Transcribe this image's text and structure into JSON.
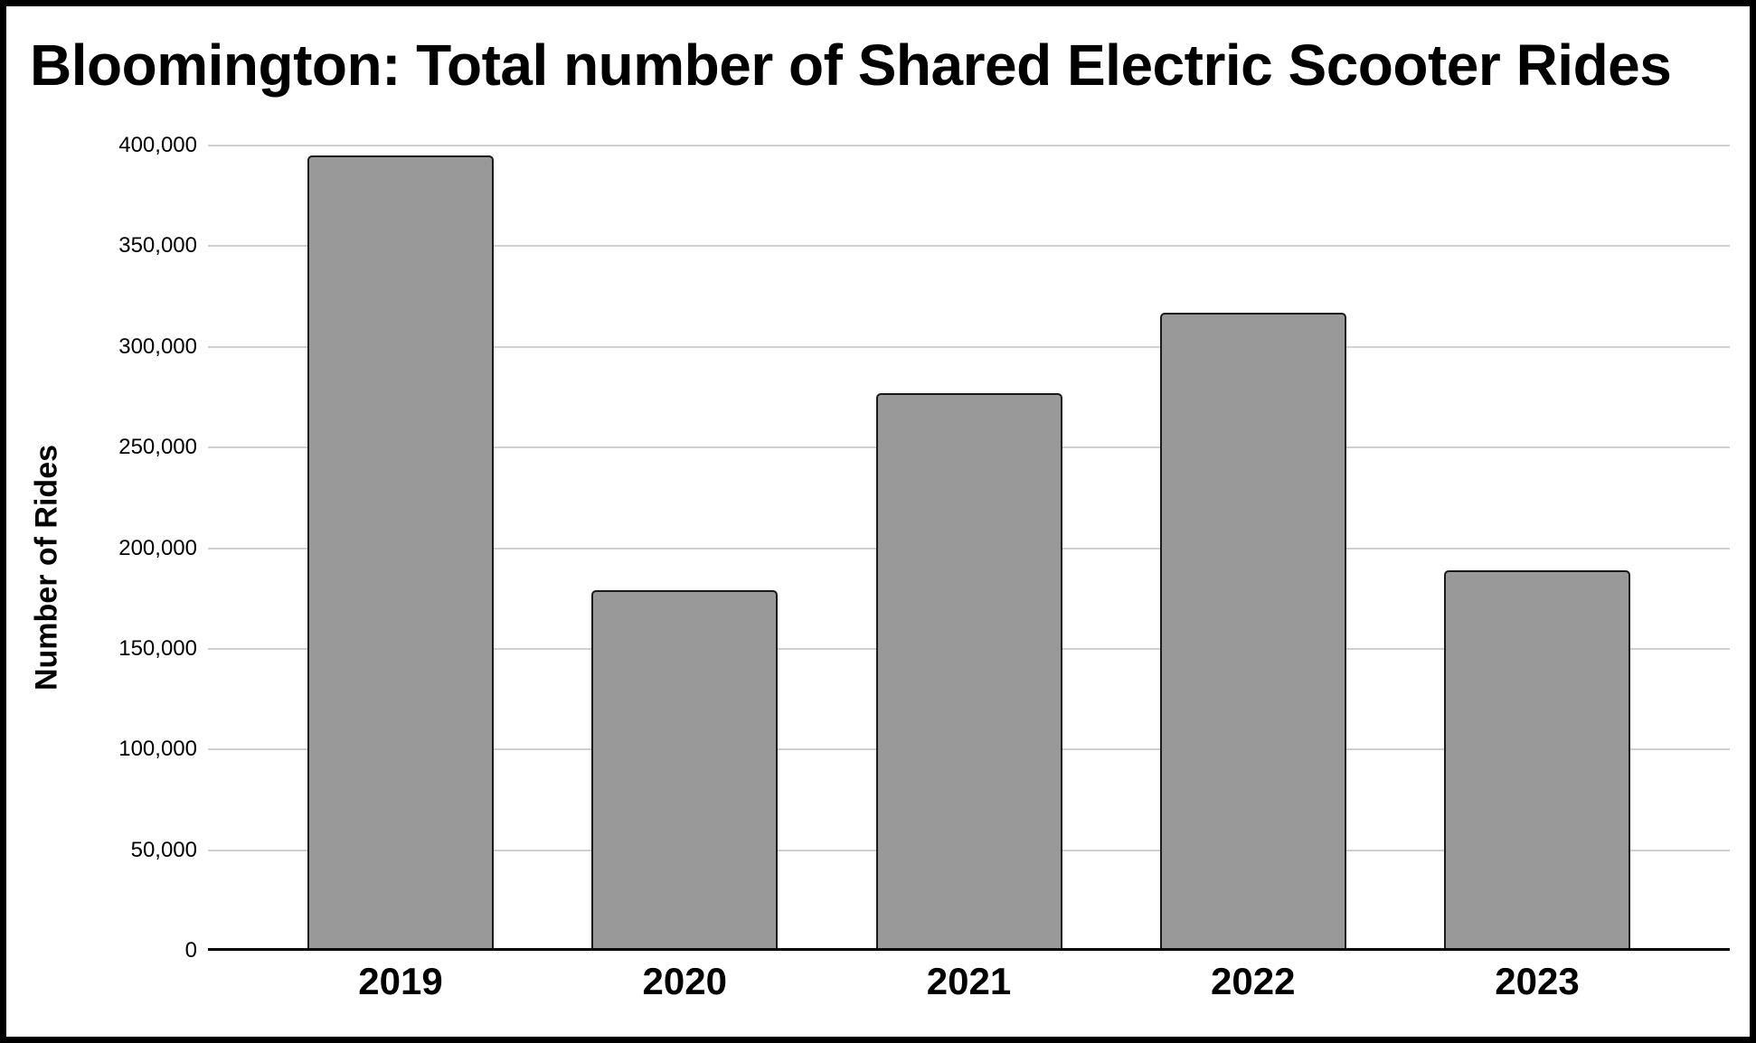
{
  "title": "Bloomington: Total number of Shared Electric Scooter Rides",
  "chart_data": {
    "type": "bar",
    "title": "Bloomington: Total number of Shared Electric Scooter Rides",
    "categories": [
      "2019",
      "2020",
      "2021",
      "2022",
      "2023"
    ],
    "values": [
      395000,
      179000,
      277000,
      317000,
      189000
    ],
    "xlabel": "",
    "ylabel": "Number of Rides",
    "ylim": [
      0,
      400000
    ],
    "ytick_step": 50000,
    "yticks": [
      {
        "value": 0,
        "label": "0"
      },
      {
        "value": 50000,
        "label": "50,000"
      },
      {
        "value": 100000,
        "label": "100,000"
      },
      {
        "value": 150000,
        "label": "150,000"
      },
      {
        "value": 200000,
        "label": "200,000"
      },
      {
        "value": 250000,
        "label": "250,000"
      },
      {
        "value": 300000,
        "label": "300,000"
      },
      {
        "value": 350000,
        "label": "350,000"
      },
      {
        "value": 400000,
        "label": "400,000"
      }
    ],
    "grid": true,
    "legend": false,
    "colors": {
      "bar_fill": "#999999",
      "bar_border": "#1a1a1a",
      "gridline": "#d0d0d0",
      "baseline": "#000000",
      "background": "#ffffff",
      "text": "#000000"
    }
  }
}
